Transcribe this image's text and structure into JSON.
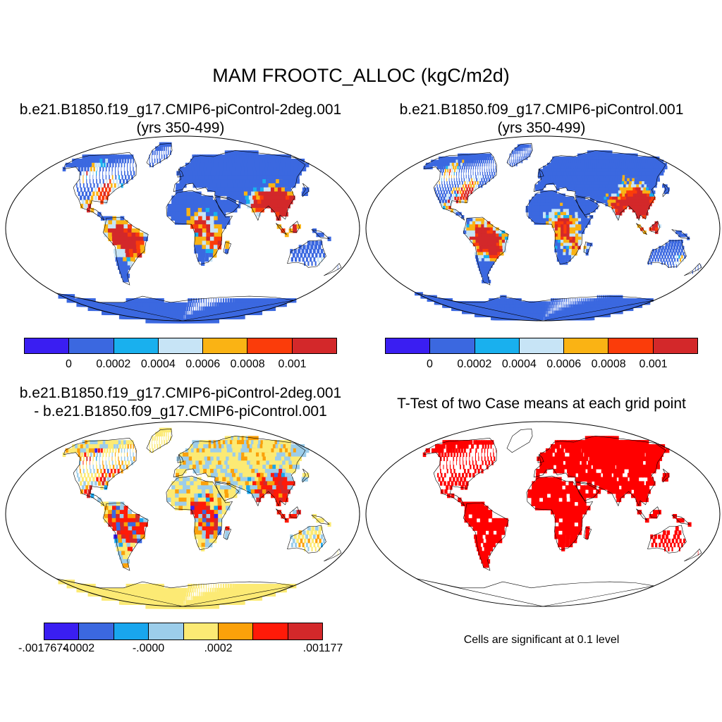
{
  "title": "MAM FROOTC_ALLOC (kgC/m2d)",
  "panels": [
    {
      "title_line1": "b.e21.B1850.f19_g17.CMIP6-piControl-2deg.001",
      "title_line2": "(yrs 350-499)",
      "colorbar": {
        "colors": [
          "#3a1ef2",
          "#3b68e0",
          "#19b0ee",
          "#c7e4f6",
          "#fab314",
          "#fb3c0a",
          "#d3282a"
        ],
        "labels": [
          "0",
          "0.0002",
          "0.0004",
          "0.0006",
          "0.0008",
          "0.001"
        ]
      }
    },
    {
      "title_line1": "b.e21.B1850.f09_g17.CMIP6-piControl.001",
      "title_line2": "(yrs 350-499)",
      "colorbar": {
        "colors": [
          "#3a1ef2",
          "#3b68e0",
          "#19b0ee",
          "#c7e4f6",
          "#fab314",
          "#fb3c0a",
          "#d3282a"
        ],
        "labels": [
          "0",
          "0.0002",
          "0.0004",
          "0.0006",
          "0.0008",
          "0.001"
        ]
      }
    },
    {
      "title_line1": "b.e21.B1850.f19_g17.CMIP6-piControl-2deg.001",
      "title_line2": "- b.e21.B1850.f09_g17.CMIP6-piControl.001",
      "colorbar": {
        "colors": [
          "#3a1ef2",
          "#3b68e0",
          "#19a6ee",
          "#9ccdea",
          "#fcea74",
          "#fba10a",
          "#ff1a08",
          "#d3282a"
        ],
        "labels": [
          "-.0017674",
          "-.0002",
          "-.0000",
          ".0002",
          ".001177"
        ]
      }
    },
    {
      "title_line1": "T-Test of two Case means at each grid point",
      "note": "Cells are significant at 0.1 level",
      "significant_color": "#ff0000"
    }
  ]
}
